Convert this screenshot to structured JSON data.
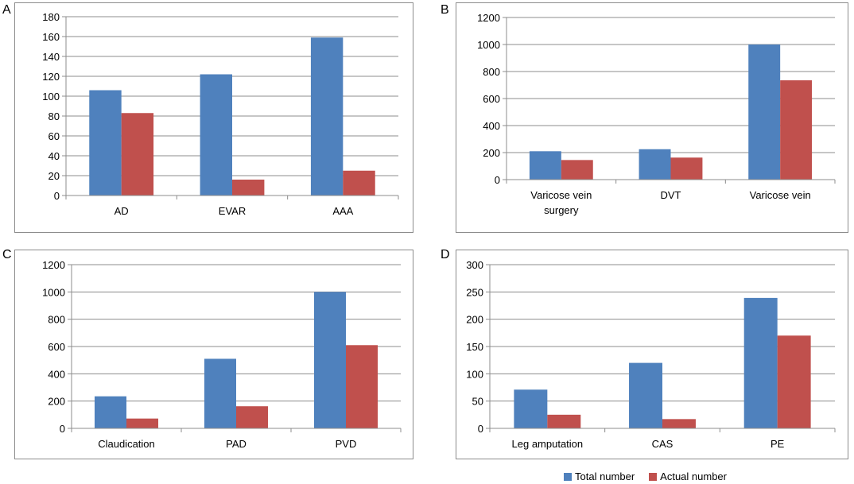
{
  "colors": {
    "total": "#4F81BD",
    "actual": "#C0504D",
    "grid": "#8c8c8c",
    "axis": "#8c8c8c"
  },
  "legend": {
    "total": "Total number",
    "actual": "Actual number"
  },
  "chart_data": [
    {
      "panel": "A",
      "type": "bar",
      "categories": [
        "AD",
        "EVAR",
        "AAA"
      ],
      "series": [
        {
          "name": "Total number",
          "values": [
            106,
            122,
            159
          ]
        },
        {
          "name": "Actual number",
          "values": [
            83,
            16,
            25
          ]
        }
      ],
      "ylim": [
        0,
        180
      ],
      "yticks": [
        0,
        20,
        40,
        60,
        80,
        100,
        120,
        140,
        160,
        180
      ],
      "grid": true
    },
    {
      "panel": "B",
      "type": "bar",
      "categories": [
        "Varicose vein\nsurgery",
        "DVT",
        "Varicose vein"
      ],
      "series": [
        {
          "name": "Total number",
          "values": [
            210,
            225,
            1000
          ]
        },
        {
          "name": "Actual number",
          "values": [
            145,
            163,
            735
          ]
        }
      ],
      "ylim": [
        0,
        1200
      ],
      "yticks": [
        0,
        200,
        400,
        600,
        800,
        1000,
        1200
      ],
      "grid": true
    },
    {
      "panel": "C",
      "type": "bar",
      "categories": [
        "Claudication",
        "PAD",
        "PVD"
      ],
      "series": [
        {
          "name": "Total number",
          "values": [
            235,
            510,
            1000
          ]
        },
        {
          "name": "Actual number",
          "values": [
            72,
            162,
            610
          ]
        }
      ],
      "ylim": [
        0,
        1200
      ],
      "yticks": [
        0,
        200,
        400,
        600,
        800,
        1000,
        1200
      ],
      "grid": true
    },
    {
      "panel": "D",
      "type": "bar",
      "categories": [
        "Leg amputation",
        "CAS",
        "PE"
      ],
      "series": [
        {
          "name": "Total number",
          "values": [
            71,
            120,
            239
          ]
        },
        {
          "name": "Actual number",
          "values": [
            25,
            17,
            170
          ]
        }
      ],
      "ylim": [
        0,
        300
      ],
      "yticks": [
        0,
        50,
        100,
        150,
        200,
        250,
        300
      ],
      "grid": true
    }
  ]
}
